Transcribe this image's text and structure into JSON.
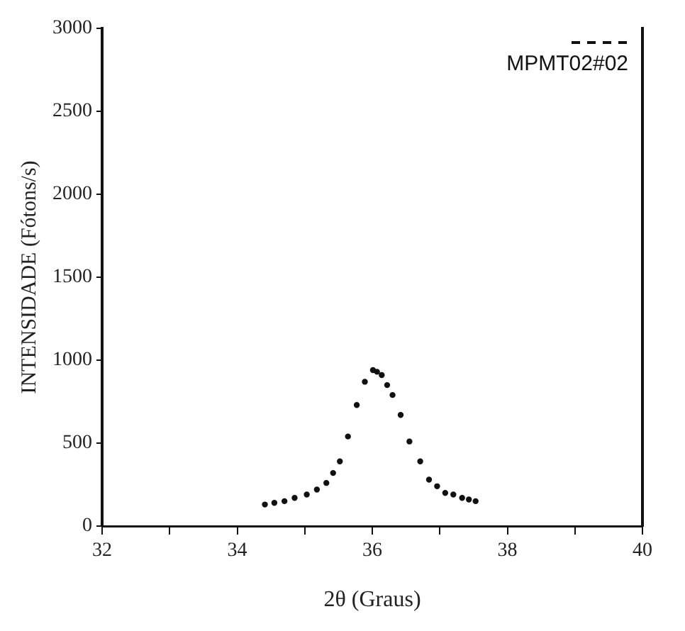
{
  "chart_data": {
    "type": "scatter",
    "xlabel": "2θ (Graus)",
    "ylabel": "INTENSIDADE (Fótons/s)",
    "xlim": [
      32,
      40
    ],
    "xticks": [
      32,
      {
        "value": 33,
        "label": null
      },
      34,
      {
        "value": 35,
        "label": null
      },
      36,
      {
        "value": 37,
        "label": null
      },
      38,
      {
        "value": 39,
        "label": null
      },
      40
    ],
    "ylim": [
      0,
      3000
    ],
    "yticks": [
      0,
      500,
      1000,
      1500,
      2000,
      2500,
      3000
    ],
    "grid": false,
    "legend": "top right",
    "marker": "circle",
    "series": [
      {
        "name": "MPMT02#02",
        "color": "#111111",
        "x": [
          34.41,
          34.55,
          34.7,
          34.85,
          35.03,
          35.18,
          35.32,
          35.42,
          35.52,
          35.64,
          35.77,
          35.89,
          36.01,
          36.07,
          36.14,
          36.22,
          36.3,
          36.42,
          36.55,
          36.71,
          36.84,
          36.96,
          37.08,
          37.2,
          37.33,
          37.43,
          37.53
        ],
        "values": [
          130,
          140,
          150,
          170,
          190,
          220,
          260,
          320,
          390,
          540,
          730,
          870,
          940,
          930,
          910,
          850,
          790,
          670,
          510,
          390,
          280,
          240,
          200,
          190,
          170,
          160,
          150
        ]
      }
    ]
  }
}
